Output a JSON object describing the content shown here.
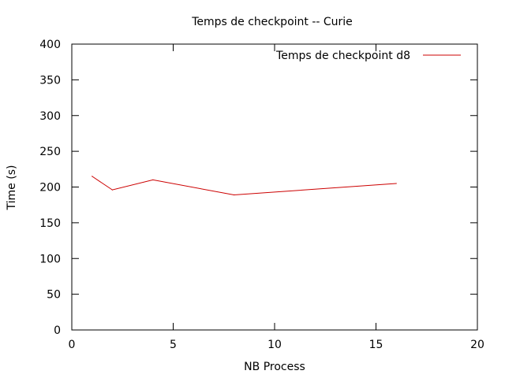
{
  "chart_data": {
    "type": "line",
    "title": "Temps de checkpoint -- Curie",
    "xlabel": "NB Process",
    "ylabel": "Time (s)",
    "xlim": [
      0,
      20
    ],
    "ylim": [
      0,
      400
    ],
    "xticks": [
      0,
      5,
      10,
      15,
      20
    ],
    "yticks": [
      0,
      50,
      100,
      150,
      200,
      250,
      300,
      350,
      400
    ],
    "grid": false,
    "legend_position": "top-right",
    "series": [
      {
        "name": "Temps de checkpoint d8",
        "color": "#cc0000",
        "x": [
          1,
          2,
          4,
          8,
          16
        ],
        "y": [
          215,
          196,
          210,
          189,
          205
        ]
      }
    ]
  }
}
